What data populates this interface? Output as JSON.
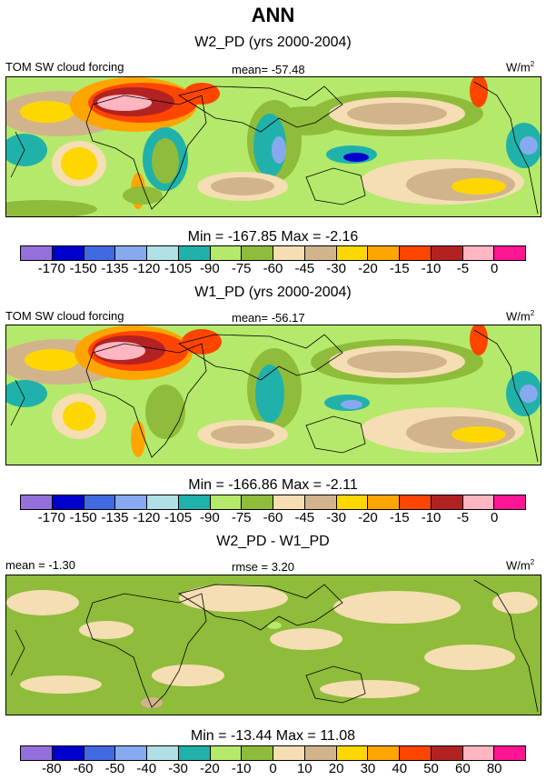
{
  "title": "ANN",
  "panels": [
    {
      "subtitle": "W2_PD (yrs 2000-2004)",
      "left_label": "TOM SW cloud forcing",
      "center_label": "mean= -57.48",
      "units_base": "W/m",
      "units_exp": "2",
      "minmax": "Min = -167.85 Max =  -2.16"
    },
    {
      "subtitle": "W1_PD (yrs 2000-2004)",
      "left_label": "TOM SW cloud forcing",
      "center_label": "mean= -56.17",
      "units_base": "W/m",
      "units_exp": "2",
      "minmax": "Min = -166.86 Max =  -2.11"
    },
    {
      "subtitle": "W2_PD - W1_PD",
      "left_label": "mean =  -1.30",
      "center_label": "rmse =   3.20",
      "units_base": "W/m",
      "units_exp": "2",
      "minmax": "Min = -13.44 Max =  11.08"
    }
  ],
  "colorbar_colors": [
    "#9370db",
    "#0000cd",
    "#4169e1",
    "#87a9f0",
    "#b0e0e6",
    "#20b2aa",
    "#b5e96b",
    "#8fbc3a",
    "#f5deb3",
    "#d2b48c",
    "#ffd700",
    "#ffa500",
    "#ff4500",
    "#b22222",
    "#ffb6c1",
    "#ff1493"
  ],
  "colorbar_ticks_abs": [
    "-170",
    "-150",
    "-135",
    "-120",
    "-105",
    "-90",
    "-75",
    "-60",
    "-45",
    "-30",
    "-20",
    "-15",
    "-10",
    "-5",
    "0"
  ],
  "colorbar_ticks_diff": [
    "-80",
    "-60",
    "-50",
    "-40",
    "-30",
    "-20",
    "-10",
    "0",
    "10",
    "20",
    "30",
    "40",
    "50",
    "60",
    "80"
  ],
  "colors": {
    "background": "#ffffff",
    "ocean_mid": "#f5deb3",
    "green_light": "#b5e96b",
    "green_dark": "#8fbc3a",
    "yellow": "#ffd700"
  }
}
